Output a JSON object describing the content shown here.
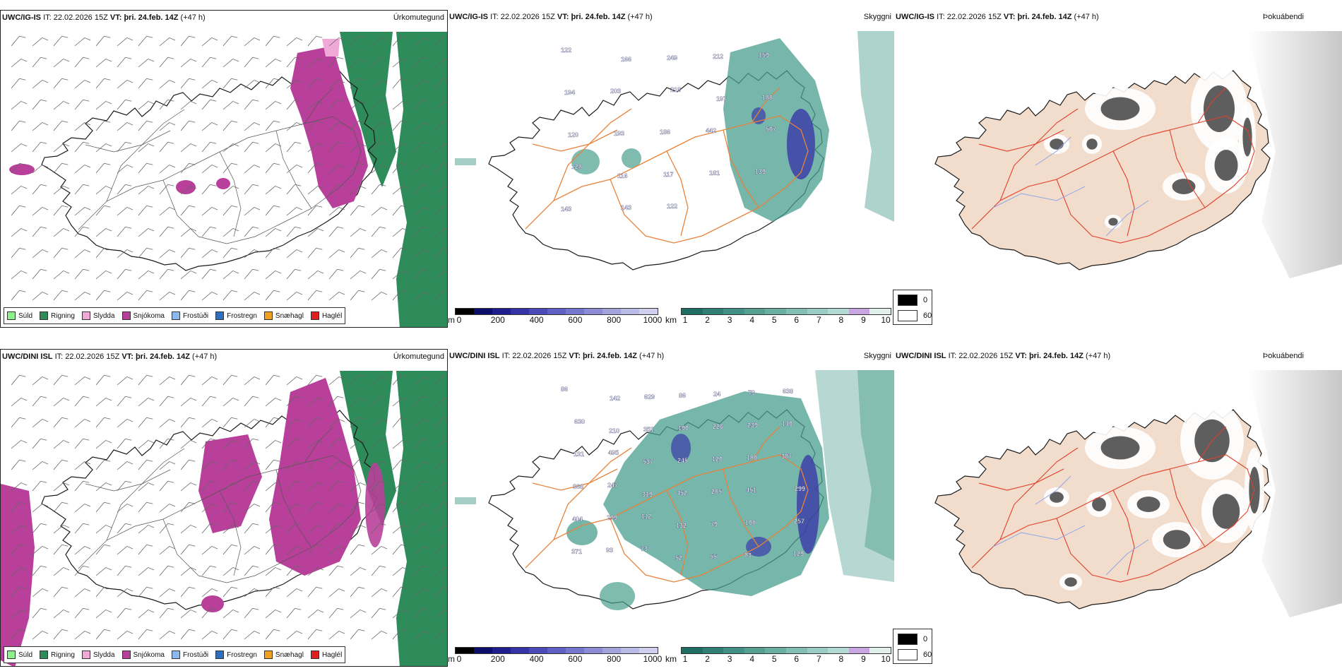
{
  "rows": [
    {
      "model": "UWC/IG-IS",
      "it_label": "IT:",
      "it_value": "22.02.2026 15Z",
      "vt_label": "VT:",
      "vt_value": "þri. 24.feb. 14Z",
      "lead": "(+47 h)",
      "panel_titles": [
        "Úrkomutegund",
        "Skyggni",
        "Þokuábendi"
      ],
      "ceiling_labels": [
        {
          "text": "122"
        },
        {
          "text": "166"
        },
        {
          "text": "249"
        },
        {
          "text": "212"
        },
        {
          "text": "159"
        },
        {
          "text": "194"
        },
        {
          "text": "203"
        },
        {
          "text": "218"
        },
        {
          "text": "197"
        },
        {
          "text": "188"
        },
        {
          "text": "120"
        },
        {
          "text": "193"
        },
        {
          "text": "186"
        },
        {
          "text": "442"
        },
        {
          "text": "507"
        },
        {
          "text": "128"
        },
        {
          "text": "116"
        },
        {
          "text": "117"
        },
        {
          "text": "181"
        },
        {
          "text": "139"
        },
        {
          "text": "143"
        },
        {
          "text": "143"
        },
        {
          "text": "122"
        }
      ]
    },
    {
      "model": "UWC/DINI ISL",
      "it_label": "IT:",
      "it_value": "22.02.2026 15Z",
      "vt_label": "VT:",
      "vt_value": "þri. 24.feb. 14Z",
      "lead": "(+47 h)",
      "panel_titles": [
        "Úrkomutegund",
        "Skyggni",
        "Þokuábendi"
      ],
      "ceiling_labels": [
        {
          "text": "86"
        },
        {
          "text": "142"
        },
        {
          "text": "629"
        },
        {
          "text": "86"
        },
        {
          "text": "24"
        },
        {
          "text": "79"
        },
        {
          "text": "638"
        },
        {
          "text": "630"
        },
        {
          "text": "210"
        },
        {
          "text": "351"
        },
        {
          "text": "190"
        },
        {
          "text": "226"
        },
        {
          "text": "239"
        },
        {
          "text": "140"
        },
        {
          "text": "131"
        },
        {
          "text": "495"
        },
        {
          "text": "537"
        },
        {
          "text": "245"
        },
        {
          "text": "120"
        },
        {
          "text": "180"
        },
        {
          "text": "387"
        },
        {
          "text": "368"
        },
        {
          "text": "247"
        },
        {
          "text": "319"
        },
        {
          "text": "452"
        },
        {
          "text": "285"
        },
        {
          "text": "451"
        },
        {
          "text": "299"
        },
        {
          "text": "404"
        },
        {
          "text": "299"
        },
        {
          "text": "112"
        },
        {
          "text": "132"
        },
        {
          "text": "79"
        },
        {
          "text": "108"
        },
        {
          "text": "257"
        },
        {
          "text": "371"
        },
        {
          "text": "93"
        },
        {
          "text": "73"
        },
        {
          "text": "52"
        },
        {
          "text": "55"
        },
        {
          "text": "83"
        },
        {
          "text": "129"
        }
      ]
    }
  ],
  "precip_legend": [
    {
      "label": "Súld",
      "color": "#8ef08a"
    },
    {
      "label": "Rigning",
      "color": "#2e8b5a"
    },
    {
      "label": "Slydda",
      "color": "#f0a8d8"
    },
    {
      "label": "Snjókoma",
      "color": "#b8409a"
    },
    {
      "label": "Frostúði",
      "color": "#8ab8f0"
    },
    {
      "label": "Frostregn",
      "color": "#2f6fbf"
    },
    {
      "label": "Snæhagl",
      "color": "#f0a020"
    },
    {
      "label": "Haglél",
      "color": "#e02020"
    }
  ],
  "ceiling_bar": {
    "unit": "m",
    "ticks": [
      "0",
      "200",
      "400",
      "600",
      "800",
      "1000"
    ],
    "colors": [
      "#000000",
      "#0d0d6e",
      "#1e1e8f",
      "#3434a8",
      "#4a4ab8",
      "#5f5fc4",
      "#7676cc",
      "#8c8cd4",
      "#a3a3dc",
      "#babae6",
      "#d0d0ee"
    ]
  },
  "visibility_bar": {
    "unit": "km",
    "ticks": [
      "1",
      "2",
      "3",
      "4",
      "5",
      "6",
      "7",
      "8",
      "9",
      "10"
    ],
    "colors": [
      "#1f6e62",
      "#2f7f72",
      "#409083",
      "#55a093",
      "#6bafa3",
      "#82beb3",
      "#9accc3",
      "#b2d9d2",
      "#caa6e0",
      "#e2f0ec"
    ]
  },
  "fog_legend": {
    "top": "0",
    "bottom": "60",
    "top_color": "#000000",
    "bottom_color": "#ffffff"
  },
  "colors": {
    "land_fog": "#f2dccc",
    "roads": "#e8823a",
    "fog_roads": "#e0402a",
    "rivers": "#8fa6e8",
    "coast": "#1a1a1a",
    "visibility_teal": "#4a9e8e",
    "ceiling_blue": "#3a3aa8"
  }
}
